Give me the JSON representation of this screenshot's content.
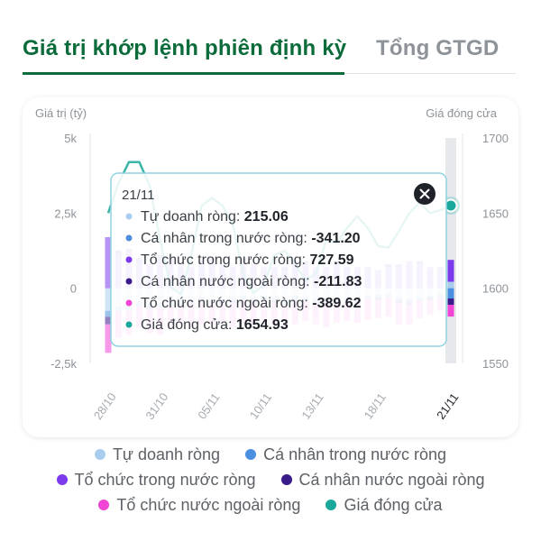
{
  "tabs": {
    "active": "Giá trị khớp lệnh phiên định kỳ",
    "inactive": "Tổng GTGD"
  },
  "colors": {
    "tu_doanh": "#a9cdee",
    "ca_nhan_trong_nuoc": "#4c8fe0",
    "to_chuc_trong_nuoc": "#7c3aed",
    "ca_nhan_nuoc_ngoai": "#3b1a8c",
    "to_chuc_nuoc_ngoai": "#f045d5",
    "gia_dong_cua": "#1aa89a"
  },
  "legend": [
    [
      "Tự doanh ròng",
      "Cá nhân trong nước ròng"
    ],
    [
      "Tổ chức trong nước ròng",
      "Cá nhân nước ngoài ròng"
    ],
    [
      "Tổ chức nước ngoài ròng",
      "Giá đóng cửa"
    ]
  ],
  "tooltip": {
    "date": "21/11",
    "rows": [
      {
        "label": "Tự doanh ròng: ",
        "value": "215.06"
      },
      {
        "label": "Cá nhân trong nước ròng: ",
        "value": "-341.20"
      },
      {
        "label": "Tổ chức trong nước ròng: ",
        "value": "727.59"
      },
      {
        "label": "Cá nhân nước ngoài ròng: ",
        "value": "-211.83"
      },
      {
        "label": "Tổ chức nước ngoài ròng: ",
        "value": "-389.62"
      },
      {
        "label": "Giá đóng cửa: ",
        "value": "1654.93"
      }
    ]
  },
  "chart_data": {
    "type": "bar",
    "y_left_label": "Giá trị (tỷ)",
    "y_right_label": "Giá đóng cửa",
    "y_left_ticks": [
      "5k",
      "2,5k",
      "0",
      "-2,5k"
    ],
    "y_left_range": [
      -2500,
      5000
    ],
    "y_right_ticks": [
      "1700",
      "1650",
      "1600",
      "1550"
    ],
    "y_right_range": [
      1550,
      1700
    ],
    "x_tick_labels": [
      "28/10",
      "31/10",
      "05/11",
      "10/11",
      "13/11",
      "18/11",
      "21/11"
    ],
    "highlighted": "21/11",
    "series": [
      {
        "name": "Tự doanh ròng",
        "values": [
          -750,
          -600,
          -550,
          -450,
          -500,
          -500,
          -450,
          -400,
          -350,
          -300,
          -400,
          -350,
          -300,
          -250,
          -300,
          -250,
          -300,
          -400,
          -250,
          -300,
          -350,
          -300,
          -350,
          -300,
          -300,
          -250,
          -200,
          -200,
          -300,
          -350,
          -300,
          -250,
          -200,
          215
        ]
      },
      {
        "name": "Cá nhân trong nước ròng",
        "values": [
          -200,
          -150,
          -200,
          -150,
          -100,
          -150,
          -150,
          -100,
          -100,
          -100,
          -100,
          -100,
          -100,
          -150,
          -100,
          -100,
          -100,
          -150,
          -100,
          -100,
          -100,
          -100,
          -100,
          -100,
          -100,
          -100,
          -100,
          -100,
          -100,
          -100,
          -100,
          -50,
          -100,
          -341
        ]
      },
      {
        "name": "Tổ chức trong nước ròng",
        "values": [
          1700,
          1100,
          1200,
          900,
          800,
          1000,
          900,
          800,
          700,
          800,
          900,
          800,
          700,
          900,
          800,
          700,
          700,
          600,
          900,
          800,
          700,
          700,
          800,
          700,
          700,
          600,
          600,
          700,
          800,
          900,
          800,
          700,
          600,
          728
        ]
      },
      {
        "name": "Cá nhân nước ngoài ròng",
        "values": [
          -250,
          150,
          100,
          100,
          -100,
          100,
          100,
          -100,
          -100,
          100,
          100,
          -100,
          -100,
          100,
          -100,
          -100,
          -100,
          100,
          -100,
          100,
          -100,
          -100,
          100,
          -100,
          -100,
          100,
          -100,
          100,
          -100,
          -100,
          100,
          -100,
          100,
          -212
        ]
      },
      {
        "name": "Tổ chức nước ngoài ròng",
        "values": [
          -950,
          -900,
          -800,
          -700,
          -800,
          -900,
          -700,
          -600,
          -750,
          -800,
          -700,
          -600,
          -800,
          -750,
          -700,
          -650,
          -700,
          -800,
          -750,
          -700,
          -650,
          -800,
          -700,
          -600,
          -650,
          -700,
          -600,
          -650,
          -700,
          -650,
          -600,
          -500,
          -450,
          -390
        ]
      },
      {
        "name": "Giá đóng cửa",
        "type": "line",
        "values": [
          1650,
          1670,
          1684,
          1684,
          1668,
          1632,
          1601,
          1596,
          1622,
          1655,
          1660,
          1655,
          1643,
          1609,
          1597,
          1602,
          1622,
          1625,
          1616,
          1605,
          1610,
          1632,
          1630,
          1640,
          1648,
          1640,
          1628,
          1627,
          1638,
          1650,
          1657,
          1650,
          1652,
          1655
        ]
      }
    ]
  }
}
